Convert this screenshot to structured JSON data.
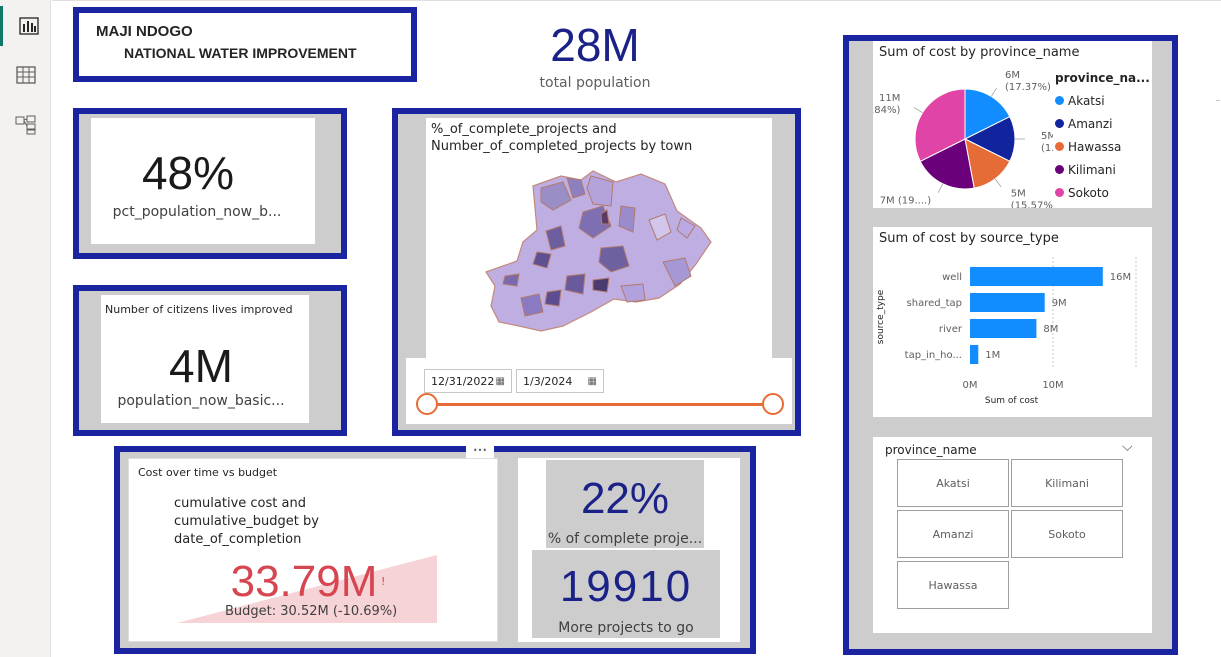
{
  "header": {
    "line1": "MAJI NDOGO",
    "line2": "NATIONAL WATER IMPROVEMENT"
  },
  "kpi_population": {
    "value": "28M",
    "label": "total population"
  },
  "kpi_pct_basic": {
    "value": "48%",
    "label": "pct_population_now_b..."
  },
  "kpi_citizens": {
    "title": "Number of citizens lives improved",
    "value": "4M",
    "label": "population_now_basic..."
  },
  "map": {
    "title_line1": "%_of_complete_projects and",
    "title_line2": "Number_of_completed_projects by town",
    "date_start": "12/31/2022",
    "date_end": "1/3/2024",
    "slider_start_fraction": 0,
    "slider_end_fraction": 1
  },
  "cost_card": {
    "header": "Cost over time vs budget",
    "title_line1": "cumulative cost and",
    "title_line2": "cumulative_budget by",
    "title_line3": "date_of_completion",
    "value": "33.79M",
    "alert": "!",
    "budget": "Budget: 30.52M (-10.69%)",
    "more_dots": "•••"
  },
  "kpi_pct_complete": {
    "value": "22%",
    "label": "% of complete proje..."
  },
  "kpi_more_projects": {
    "value": "19910",
    "label": "More projects to go"
  },
  "pie": {
    "title": "Sum of cost by province_name",
    "legend_title": "province_na...",
    "slices": [
      {
        "name": "Akatsi",
        "value": 6,
        "label": "6M",
        "pct": "(17.37%)",
        "color": "#118dff"
      },
      {
        "name": "Amanzi",
        "value": 5,
        "label": "5M",
        "pct": "(1...)",
        "color": "#12239e"
      },
      {
        "name": "Hawassa",
        "value": 5,
        "label": "5M",
        "pct": "(15.57%)",
        "color": "#e66c37"
      },
      {
        "name": "Kilimani",
        "value": 7,
        "label": "7M (19....)",
        "pct": "",
        "color": "#6b007b"
      },
      {
        "name": "Sokoto",
        "value": 11,
        "label": "11M",
        "pct": "(32.84%)",
        "color": "#e044a7"
      }
    ]
  },
  "chart_data": {
    "type": "bar",
    "title": "Sum of cost by source_type",
    "categories": [
      "well",
      "shared_tap",
      "river",
      "tap_in_ho..."
    ],
    "values": [
      16,
      9,
      8,
      1
    ],
    "value_labels": [
      "16M",
      "9M",
      "8M",
      "1M"
    ],
    "xlabel": "Sum of cost",
    "ylabel": "source_type",
    "xticks": [
      "0M",
      "10M"
    ],
    "xlim": [
      0,
      20
    ],
    "color": "#118dff"
  },
  "slicer": {
    "title": "province_name",
    "items": [
      "Akatsi",
      "Kilimani",
      "Amanzi",
      "Sokoto",
      "Hawassa"
    ]
  },
  "colors": {
    "frame": "#1a24a0",
    "accent_red": "#d64550",
    "slider": "#e66c37",
    "kpi_navy": "#1b2287"
  }
}
